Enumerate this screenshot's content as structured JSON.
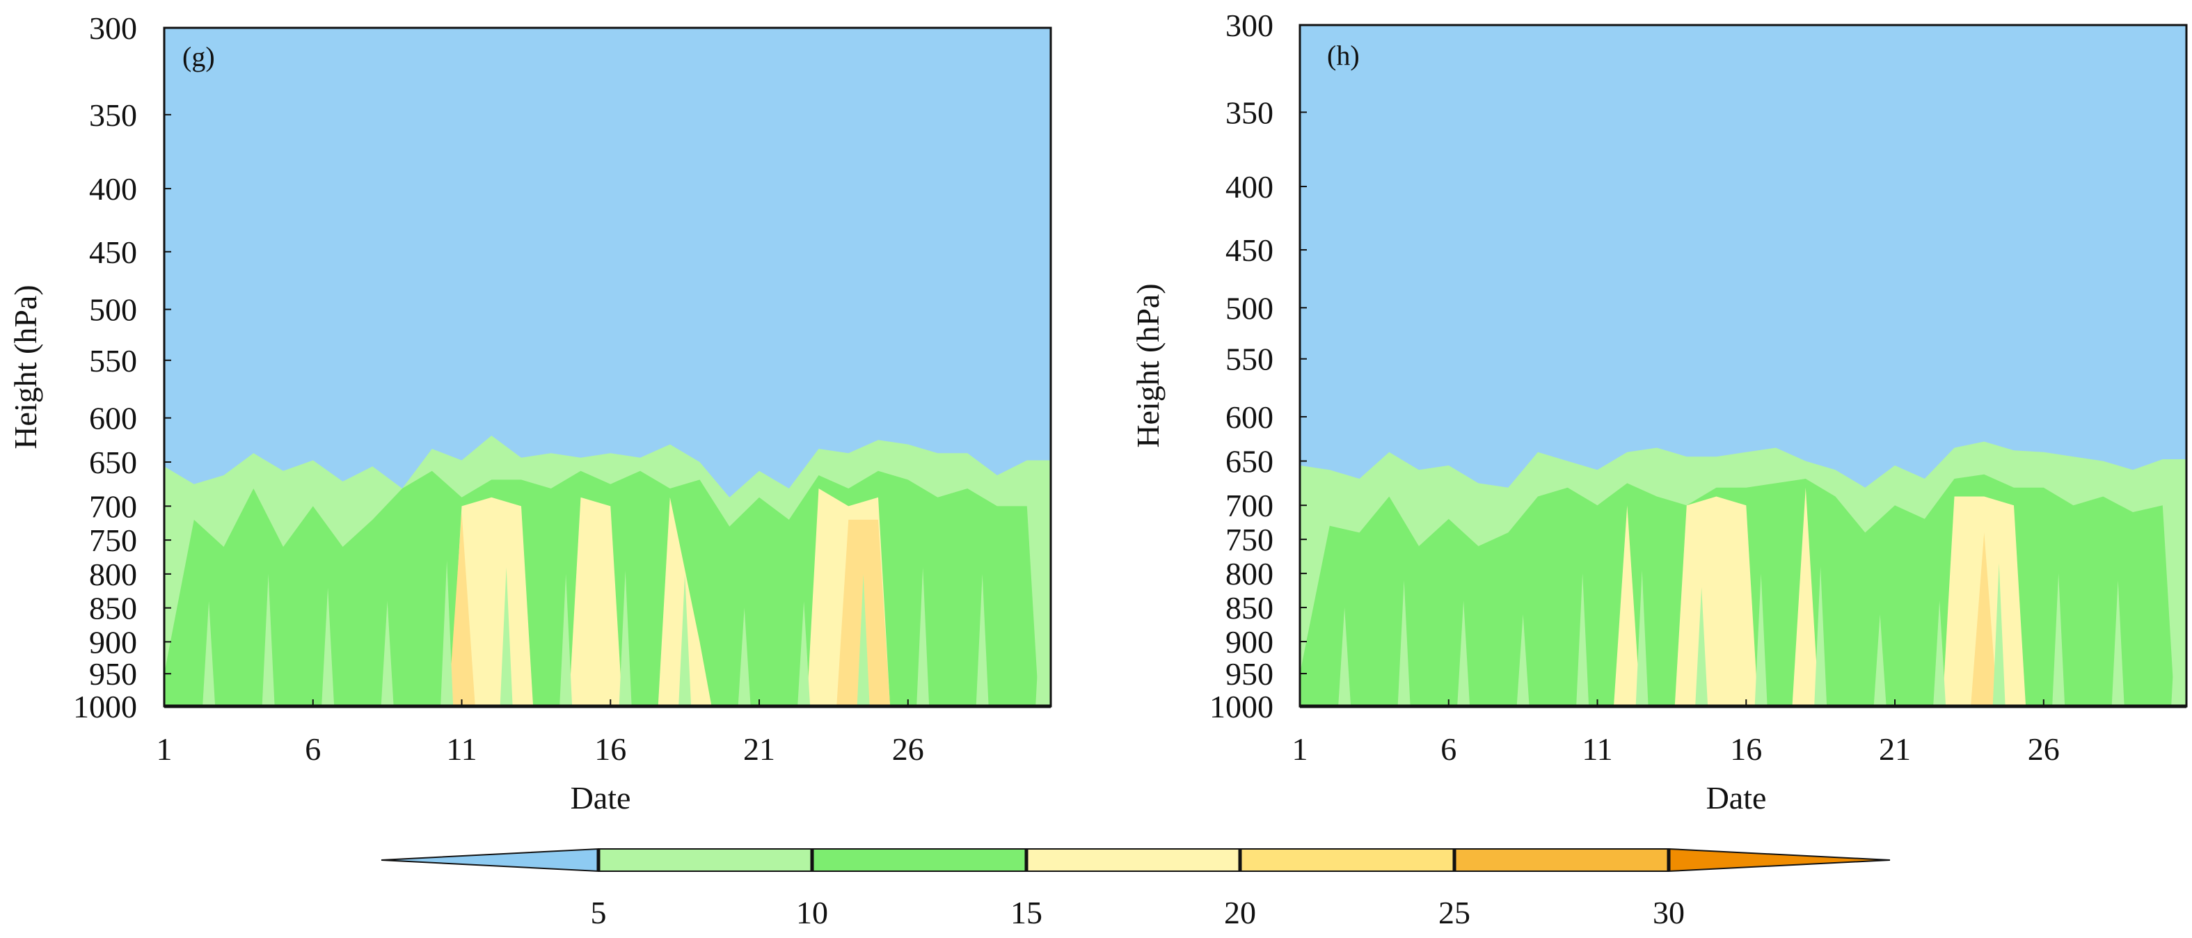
{
  "chart_data": [
    {
      "type": "contour",
      "panel_label": "(g)",
      "xlabel": "Date",
      "ylabel": "Height (hPa)",
      "x_ticks": [
        1,
        6,
        11,
        16,
        21,
        26
      ],
      "y_ticks": [
        300,
        350,
        400,
        450,
        500,
        550,
        600,
        650,
        700,
        750,
        800,
        850,
        900,
        950,
        1000
      ],
      "xlim": [
        1,
        30.8
      ],
      "ylim": [
        1000,
        300
      ],
      "y_scale": "pressure (log-like, inverted)",
      "x": [
        1,
        2,
        3,
        4,
        5,
        6,
        7,
        8,
        9,
        10,
        11,
        12,
        13,
        14,
        15,
        16,
        17,
        18,
        19,
        20,
        21,
        22,
        23,
        24,
        25,
        26,
        27,
        28,
        29,
        30
      ],
      "band_tops_hPa": {
        "above_5": [
          655,
          675,
          665,
          640,
          660,
          648,
          672,
          655,
          680,
          635,
          648,
          620,
          645,
          640,
          645,
          640,
          645,
          630,
          650,
          690,
          660,
          680,
          635,
          640,
          625,
          630,
          640,
          640,
          665,
          648
        ],
        "above_10": [
          950,
          720,
          760,
          680,
          760,
          700,
          760,
          720,
          680,
          660,
          690,
          670,
          670,
          680,
          660,
          675,
          660,
          680,
          670,
          730,
          690,
          720,
          665,
          680,
          660,
          670,
          690,
          680,
          700,
          700
        ],
        "above_15": [
          null,
          null,
          null,
          null,
          null,
          null,
          null,
          null,
          null,
          null,
          700,
          690,
          700,
          null,
          690,
          700,
          null,
          690,
          900,
          null,
          null,
          null,
          680,
          700,
          690,
          null,
          null,
          null,
          null,
          null
        ],
        "above_20": [
          null,
          null,
          null,
          null,
          null,
          null,
          null,
          null,
          null,
          null,
          710,
          null,
          null,
          null,
          null,
          null,
          null,
          null,
          null,
          null,
          null,
          null,
          null,
          720,
          720,
          null,
          null,
          null,
          null,
          null
        ]
      },
      "peak_region": {
        "date": 25,
        "level_hPa": 700,
        "range": "20-25"
      }
    },
    {
      "type": "contour",
      "panel_label": "(h)",
      "xlabel": "Date",
      "ylabel": "Height (hPa)",
      "x_ticks": [
        1,
        6,
        11,
        16,
        21,
        26
      ],
      "y_ticks": [
        300,
        350,
        400,
        450,
        500,
        550,
        600,
        650,
        700,
        750,
        800,
        850,
        900,
        950,
        1000
      ],
      "xlim": [
        1,
        30.8
      ],
      "ylim": [
        1000,
        300
      ],
      "y_scale": "pressure (log-like, inverted)",
      "x": [
        1,
        2,
        3,
        4,
        5,
        6,
        7,
        8,
        9,
        10,
        11,
        12,
        13,
        14,
        15,
        16,
        17,
        18,
        19,
        20,
        21,
        22,
        23,
        24,
        25,
        26,
        27,
        28,
        29,
        30
      ],
      "band_tops_hPa": {
        "above_5": [
          655,
          660,
          670,
          640,
          660,
          655,
          675,
          680,
          640,
          650,
          660,
          640,
          635,
          645,
          645,
          640,
          635,
          650,
          660,
          680,
          655,
          670,
          635,
          628,
          638,
          640,
          645,
          650,
          660,
          648
        ],
        "above_10": [
          950,
          730,
          740,
          690,
          760,
          720,
          760,
          740,
          690,
          680,
          700,
          675,
          690,
          700,
          680,
          680,
          675,
          670,
          690,
          740,
          700,
          720,
          670,
          665,
          680,
          680,
          700,
          690,
          710,
          700
        ],
        "above_15": [
          null,
          null,
          null,
          null,
          null,
          null,
          null,
          null,
          null,
          null,
          null,
          700,
          null,
          700,
          690,
          700,
          null,
          680,
          null,
          null,
          null,
          null,
          690,
          690,
          700,
          null,
          null,
          null,
          null,
          null
        ],
        "above_20": [
          null,
          null,
          null,
          null,
          null,
          null,
          null,
          null,
          null,
          null,
          null,
          null,
          null,
          null,
          null,
          null,
          null,
          null,
          null,
          null,
          null,
          null,
          null,
          740,
          null,
          null,
          null,
          null,
          null,
          null
        ]
      },
      "peak_region": {
        "date": 24,
        "level_hPa": 720,
        "range": "15-20"
      }
    }
  ],
  "colorbar": {
    "orientation": "horizontal",
    "extend": "both",
    "ticks": [
      "5",
      "10",
      "15",
      "20",
      "25",
      "30"
    ],
    "levels": [
      5,
      10,
      15,
      20,
      25,
      30
    ],
    "colors": {
      "below_5": "#8ecbf2",
      "5_10": "#b2f5a2",
      "10_15": "#7ded70",
      "15_20": "#fff5b0",
      "20_25": "#ffe27a",
      "25_30": "#f8b83a",
      "above_30": "#f08c00"
    }
  },
  "colors": {
    "background": "#98d0f5",
    "band_5_10": "#b2f5a2",
    "band_10_15": "#7ded70",
    "band_15_20": "#fff5b0",
    "band_20_25": "#ffe08a"
  }
}
